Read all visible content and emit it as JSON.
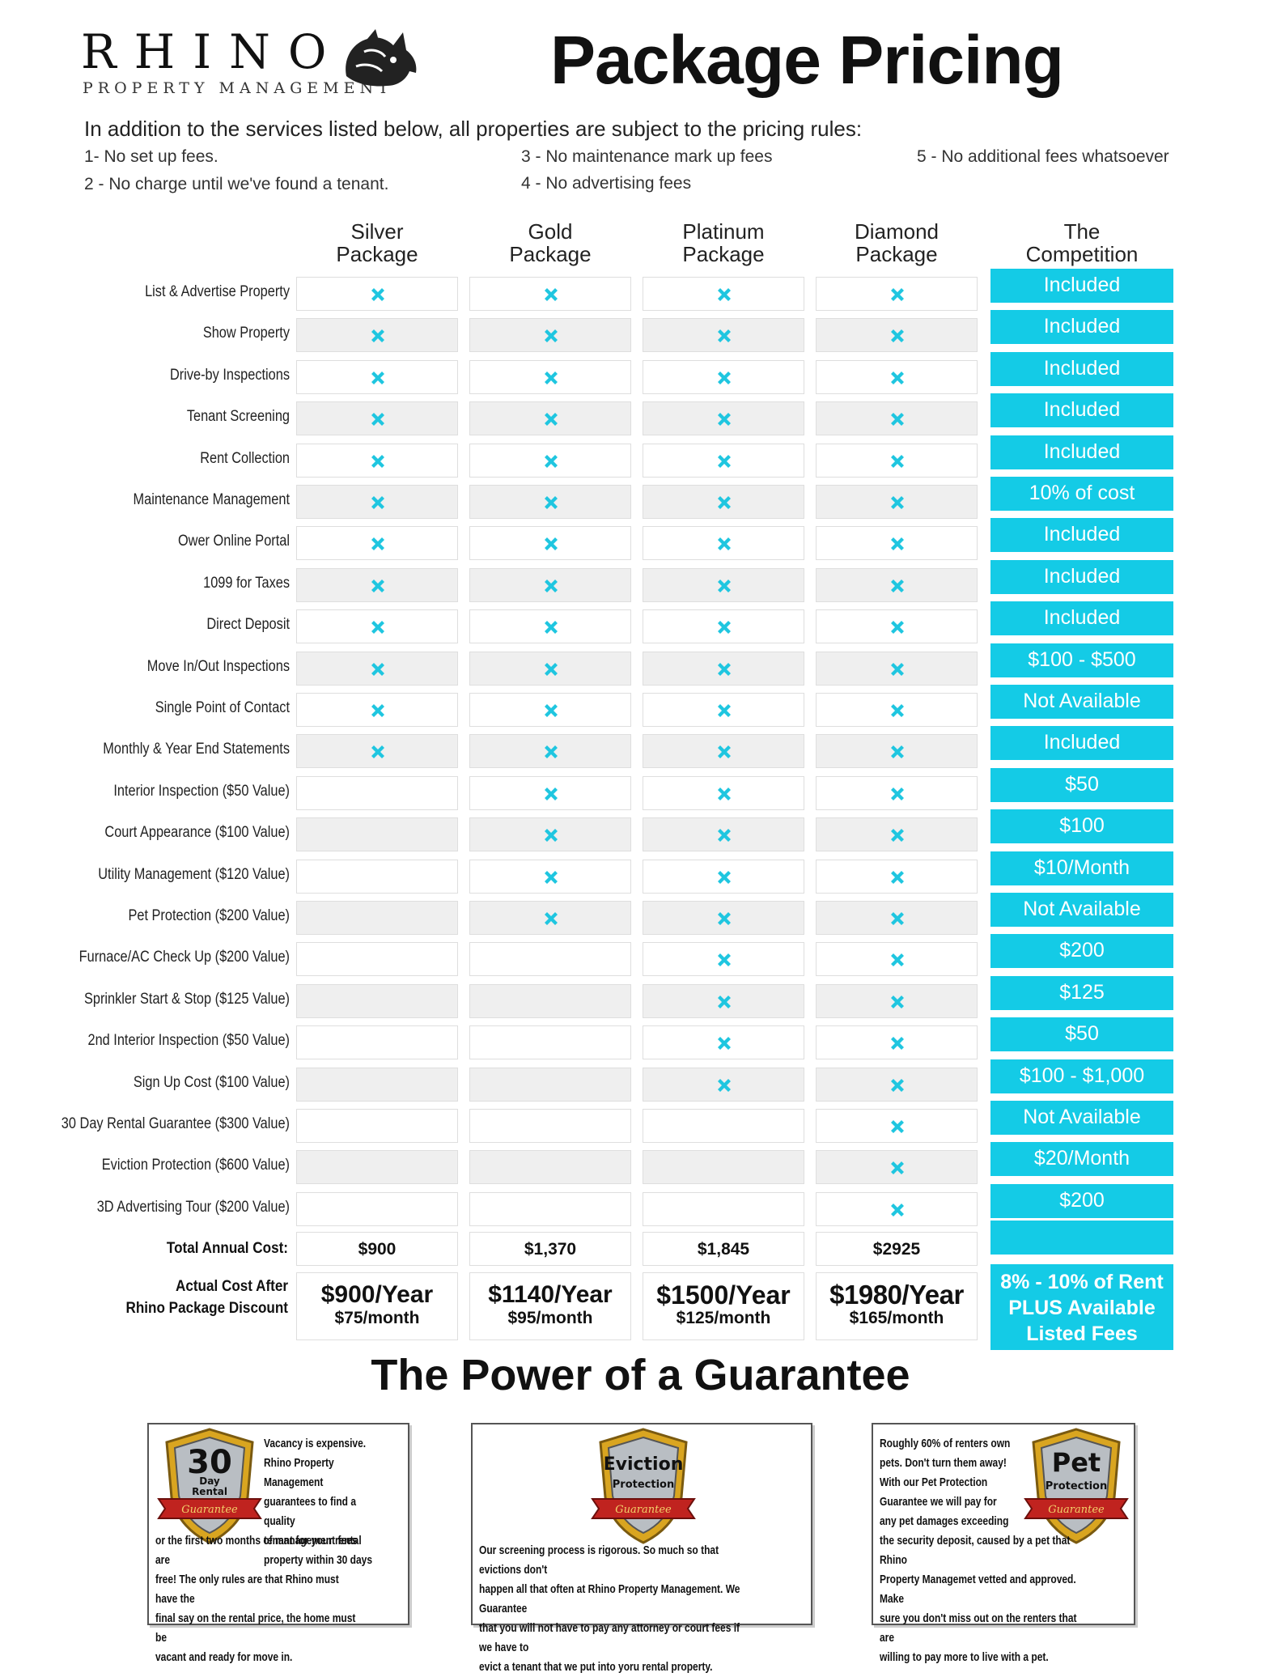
{
  "header": {
    "logo_brand": "RHINO",
    "logo_sub": "PROPERTY MANAGEMENT",
    "title": "Package Pricing"
  },
  "intro": {
    "text": "In addition to the services listed below, all properties are subject to the pricing rules:",
    "rules": [
      "1- No set up fees.",
      "2 - No charge until we've found a tenant.",
      "3 - No maintenance mark up fees",
      "4 - No advertising fees",
      "5 - No additional fees whatsoever"
    ]
  },
  "columns": [
    {
      "line1": "Silver",
      "line2": "Package"
    },
    {
      "line1": "Gold",
      "line2": "Package"
    },
    {
      "line1": "Platinum",
      "line2": "Package"
    },
    {
      "line1": "Diamond",
      "line2": "Package"
    },
    {
      "line1": "The",
      "line2": "Competition"
    }
  ],
  "rows": [
    {
      "label": "List & Advertise Property",
      "silver": true,
      "gold": true,
      "platinum": true,
      "diamond": true,
      "competition": "Included"
    },
    {
      "label": "Show Property",
      "silver": true,
      "gold": true,
      "platinum": true,
      "diamond": true,
      "competition": "Included"
    },
    {
      "label": "Drive-by Inspections",
      "silver": true,
      "gold": true,
      "platinum": true,
      "diamond": true,
      "competition": "Included"
    },
    {
      "label": "Tenant Screening",
      "silver": true,
      "gold": true,
      "platinum": true,
      "diamond": true,
      "competition": "Included"
    },
    {
      "label": "Rent Collection",
      "silver": true,
      "gold": true,
      "platinum": true,
      "diamond": true,
      "competition": "Included"
    },
    {
      "label": "Maintenance Management",
      "silver": true,
      "gold": true,
      "platinum": true,
      "diamond": true,
      "competition": "10% of cost"
    },
    {
      "label": "Ower Online Portal",
      "silver": true,
      "gold": true,
      "platinum": true,
      "diamond": true,
      "competition": "Included"
    },
    {
      "label": "1099 for Taxes",
      "silver": true,
      "gold": true,
      "platinum": true,
      "diamond": true,
      "competition": "Included"
    },
    {
      "label": "Direct Deposit",
      "silver": true,
      "gold": true,
      "platinum": true,
      "diamond": true,
      "competition": "Included"
    },
    {
      "label": "Move In/Out Inspections",
      "silver": true,
      "gold": true,
      "platinum": true,
      "diamond": true,
      "competition": "$100 - $500"
    },
    {
      "label": "Single Point of Contact",
      "silver": true,
      "gold": true,
      "platinum": true,
      "diamond": true,
      "competition": "Not Available"
    },
    {
      "label": "Monthly & Year End Statements",
      "silver": true,
      "gold": true,
      "platinum": true,
      "diamond": true,
      "competition": "Included"
    },
    {
      "label": "Interior Inspection ($50 Value)",
      "silver": false,
      "gold": true,
      "platinum": true,
      "diamond": true,
      "competition": "$50"
    },
    {
      "label": "Court Appearance ($100 Value)",
      "silver": false,
      "gold": true,
      "platinum": true,
      "diamond": true,
      "competition": "$100"
    },
    {
      "label": "Utility Management ($120 Value)",
      "silver": false,
      "gold": true,
      "platinum": true,
      "diamond": true,
      "competition": "$10/Month"
    },
    {
      "label": "Pet Protection ($200 Value)",
      "silver": false,
      "gold": true,
      "platinum": true,
      "diamond": true,
      "competition": "Not Available"
    },
    {
      "label": "Furnace/AC Check Up ($200 Value)",
      "silver": false,
      "gold": false,
      "platinum": true,
      "diamond": true,
      "competition": "$200"
    },
    {
      "label": "Sprinkler Start & Stop ($125 Value)",
      "silver": false,
      "gold": false,
      "platinum": true,
      "diamond": true,
      "competition": "$125"
    },
    {
      "label": "2nd Interior Inspection ($50 Value)",
      "silver": false,
      "gold": false,
      "platinum": true,
      "diamond": true,
      "competition": "$50"
    },
    {
      "label": "Sign Up Cost ($100 Value)",
      "silver": false,
      "gold": false,
      "platinum": true,
      "diamond": true,
      "competition": "$100 - $1,000"
    },
    {
      "label": "30 Day Rental Guarantee ($300 Value)",
      "silver": false,
      "gold": false,
      "platinum": false,
      "diamond": true,
      "competition": "Not Available"
    },
    {
      "label": "Eviction Protection ($600 Value)",
      "silver": false,
      "gold": false,
      "platinum": false,
      "diamond": true,
      "competition": "$20/Month"
    },
    {
      "label": "3D Advertising Tour ($200 Value)",
      "silver": false,
      "gold": false,
      "platinum": false,
      "diamond": true,
      "competition": "$200"
    }
  ],
  "totals": {
    "label": "Total Annual Cost:",
    "values": [
      "$900",
      "$1,370",
      "$1,845",
      "$2925"
    ]
  },
  "discount": {
    "label_line1": "Actual Cost After",
    "label_line2": "Rhino Package Discount",
    "packages": [
      {
        "year": "$900/Year",
        "month": "$75/month"
      },
      {
        "year": "$1140/Year",
        "month": "$95/month"
      },
      {
        "year": "$1500/Year",
        "month": "$125/month"
      },
      {
        "year": "$1980/Year",
        "month": "$165/month"
      }
    ],
    "competition": [
      "8% - 10% of Rent",
      "PLUS Available",
      "Listed Fees"
    ]
  },
  "guarantee": {
    "title": "The Power of a Guarantee",
    "boxes": [
      {
        "badge_top": "30",
        "badge_mid1": "Day",
        "badge_mid2": "Rental",
        "badge_ribbon": "Guarantee",
        "lines": [
          "Vacancy is expensive.",
          "Rhino Property Management",
          "guarantees to find a quality",
          "tenant for your rental",
          "property within 30 days",
          "or the first two months of management fees are",
          "free!  The only rules are that Rhino must have the",
          "final say on the rental price, the home must be",
          "vacant and ready for move in."
        ]
      },
      {
        "badge_top": "Eviction",
        "badge_mid1": "Protection",
        "badge_mid2": "",
        "badge_ribbon": "Guarantee",
        "lines": [
          "Our screening process is rigorous.  So much so that evictions don't",
          "happen all that often at Rhino Property Management.  We Guarantee",
          "that you will not have to pay any attorney or court fees if we have to",
          "evict a tenant that we put into yoru rental property."
        ]
      },
      {
        "badge_top": "Pet",
        "badge_mid1": "Protection",
        "badge_mid2": "",
        "badge_ribbon": "Guarantee",
        "lines": [
          "Roughly 60% of renters own",
          "pets.  Don't turn them away!",
          "With our Pet Protection",
          "Guarantee we will pay for",
          "any pet damages exceeding",
          "the security deposit, caused by a pet that Rhino",
          "Property Managemet vetted and approved.  Make",
          "sure you don't miss out on the renters that are",
          "willing to pay more to live with a pet."
        ]
      }
    ]
  },
  "colors": {
    "accent": "#14cbe6",
    "shade": "#efefef",
    "ribbon": "#c0231f",
    "shield_gold": "#d9a520"
  }
}
